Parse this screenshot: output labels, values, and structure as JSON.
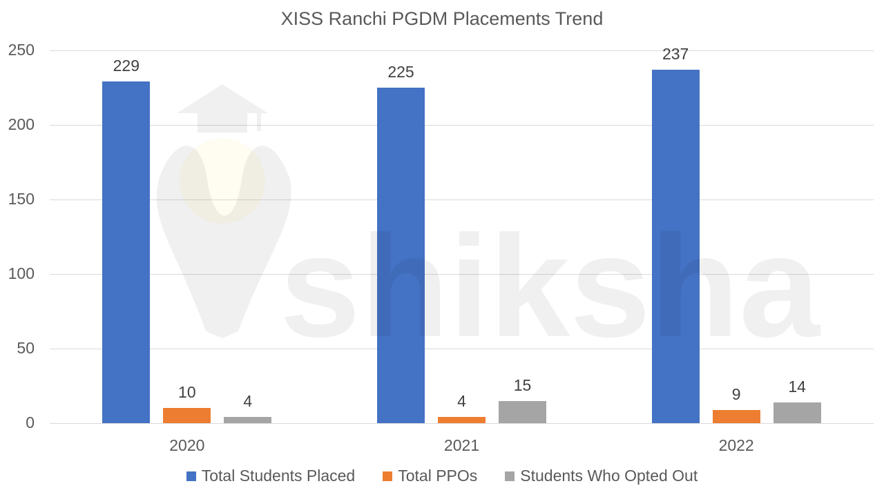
{
  "chart_data": {
    "type": "bar",
    "title": "XISS Ranchi PGDM Placements Trend",
    "xlabel": "",
    "ylabel": "",
    "ylim": [
      0,
      250
    ],
    "yticks": [
      "0",
      "50",
      "100",
      "150",
      "200",
      "250"
    ],
    "categories": [
      "2020",
      "2021",
      "2022"
    ],
    "series": [
      {
        "name": "Total Students Placed",
        "color": "#4472C4",
        "values": [
          229,
          225,
          237
        ]
      },
      {
        "name": "Total PPOs",
        "color": "#ED7D31",
        "values": [
          10,
          4,
          9
        ]
      },
      {
        "name": "Students Who Opted Out",
        "color": "#A5A5A5",
        "values": [
          4,
          15,
          14
        ]
      }
    ],
    "grid": true,
    "legend_position": "bottom",
    "data_labels": true
  },
  "watermark": {
    "text": "shiksha",
    "icon": "graduate-logo-icon"
  }
}
